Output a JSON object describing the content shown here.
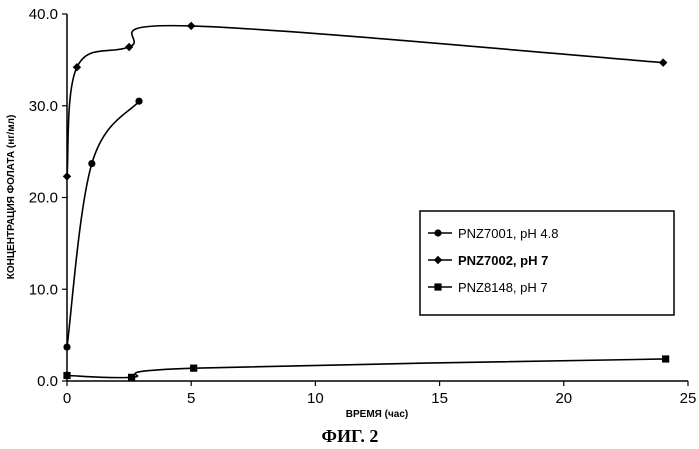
{
  "chart_data": {
    "type": "line",
    "title": "",
    "caption": "ФИГ. 2",
    "xlabel": "ВРЕМЯ (час)",
    "ylabel": "КОНЦЕНТРАЦИЯ ФОЛАТА (нг/мл)",
    "xlim": [
      0,
      25
    ],
    "ylim": [
      0,
      40
    ],
    "xticks": [
      "0",
      "5",
      "10",
      "15",
      "20",
      "25"
    ],
    "yticks": [
      "0.0",
      "10.0",
      "20.0",
      "30.0",
      "40.0"
    ],
    "grid": false,
    "legend_position": "center-right",
    "series": [
      {
        "name": "PNZ7001, pH 4.8",
        "marker": "circle",
        "bold": false,
        "points": [
          [
            0,
            3.7
          ],
          [
            1,
            23.7
          ],
          [
            2.9,
            30.5
          ]
        ]
      },
      {
        "name": "PNZ7002, pH 7",
        "marker": "diamond",
        "bold": true,
        "points": [
          [
            0,
            22.3
          ],
          [
            0.4,
            34.2
          ],
          [
            2.5,
            36.4
          ],
          [
            5,
            38.7
          ],
          [
            24,
            34.7
          ]
        ]
      },
      {
        "name": "PNZ8148,  pH 7",
        "marker": "square",
        "bold": false,
        "points": [
          [
            0,
            0.6
          ],
          [
            2.6,
            0.4
          ],
          [
            5.1,
            1.4
          ],
          [
            24.1,
            2.4
          ]
        ]
      }
    ]
  }
}
